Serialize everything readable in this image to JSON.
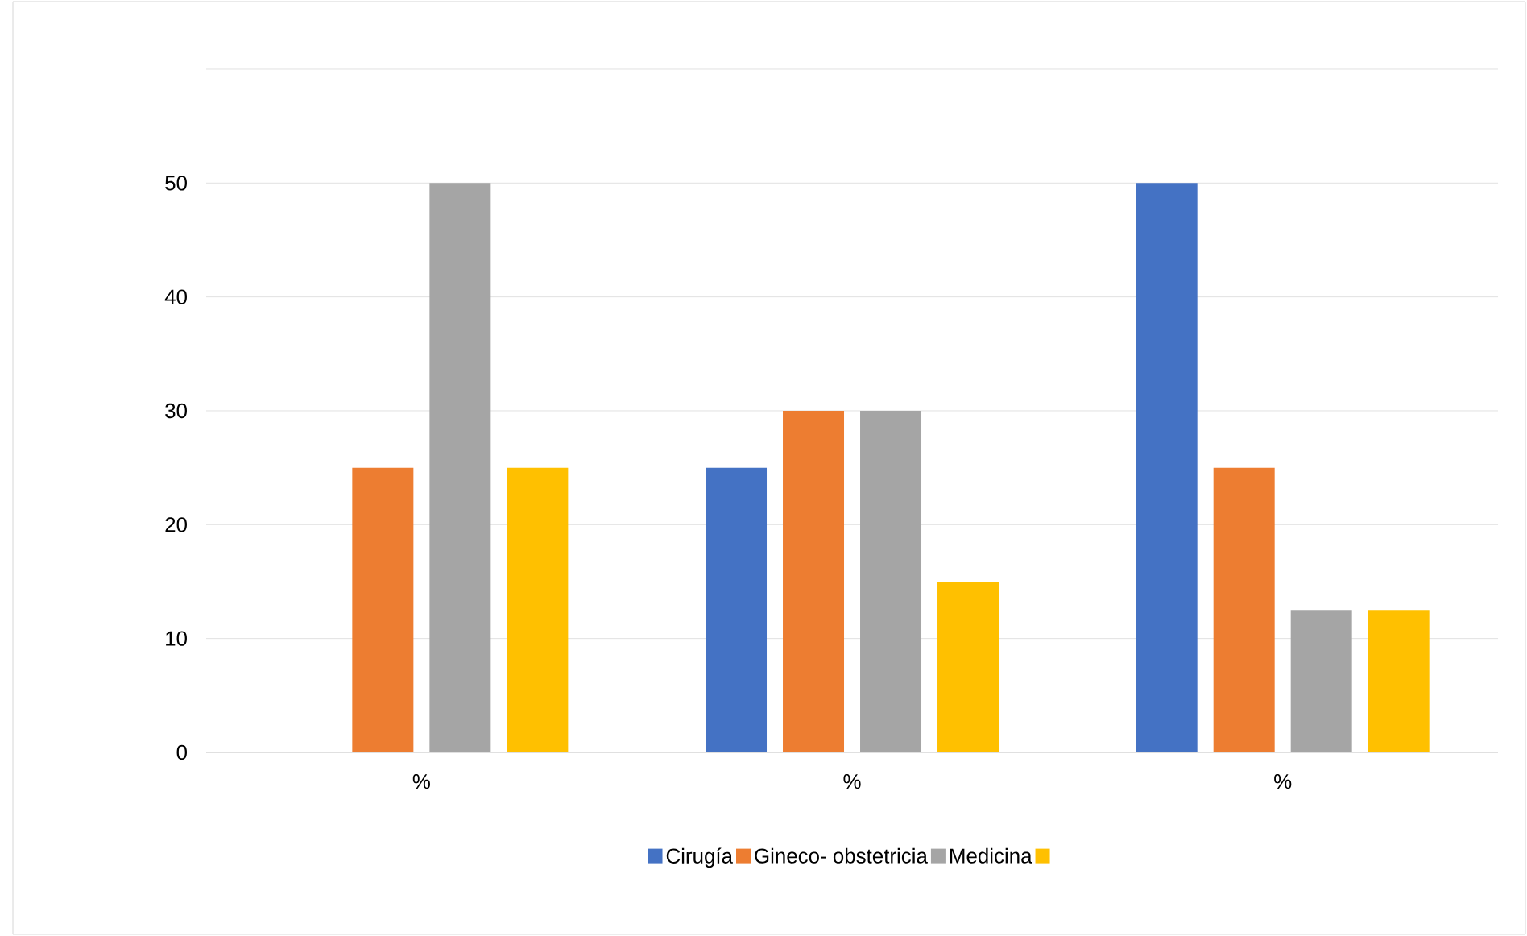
{
  "chart_data": {
    "type": "bar",
    "categories": [
      "%",
      "%",
      "%"
    ],
    "series": [
      {
        "name": "Cirugía",
        "color": "#4472c4",
        "values": [
          0,
          25,
          50
        ]
      },
      {
        "name": "Gineco- obstetricia",
        "color": "#ed7d31",
        "values": [
          25,
          30,
          25
        ]
      },
      {
        "name": "Medicina",
        "color": "#a5a5a5",
        "values": [
          50,
          30,
          12.5
        ]
      },
      {
        "color": "#ffc000",
        "values": [
          25,
          15,
          12.5
        ]
      }
    ],
    "ylim": [
      0,
      60
    ],
    "yticks": [
      0,
      10,
      20,
      30,
      40,
      50,
      {
        "value": 60,
        "label": null
      }
    ],
    "grid": "y",
    "legend": "bottom"
  }
}
